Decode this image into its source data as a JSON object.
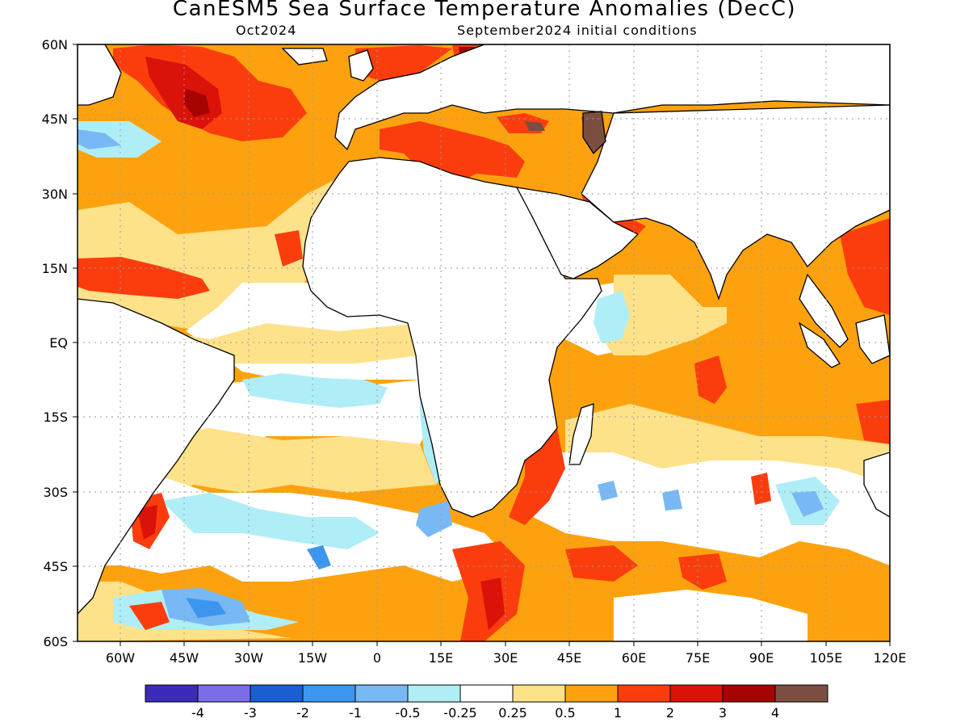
{
  "header": {
    "title": "CanESM5 Sea Surface Temperature Anomalies (DecC)",
    "target_month": "Oct2024",
    "init_conditions": "September2024 initial conditions"
  },
  "map": {
    "projection": "equirectangular",
    "lon_range": [
      -70,
      120
    ],
    "lat_range": [
      -60,
      60
    ],
    "grid": "dotted",
    "lat_ticks": [
      "60N",
      "45N",
      "30N",
      "15N",
      "EQ",
      "15S",
      "30S",
      "45S",
      "60S"
    ],
    "lon_ticks": [
      "60W",
      "45W",
      "30W",
      "15W",
      "0",
      "15E",
      "30E",
      "45E",
      "60E",
      "75E",
      "90E",
      "105E",
      "120E"
    ]
  },
  "colorbar": {
    "colors": [
      "#3a2cb8",
      "#7b6ce8",
      "#1a5fd1",
      "#3c96f0",
      "#78b9f5",
      "#b0eef7",
      "#ffffff",
      "#fde28a",
      "#fda20e",
      "#fb3d0e",
      "#db1209",
      "#a60303",
      "#7a4f42"
    ],
    "labels": [
      "-4",
      "-3",
      "-2",
      "-1",
      "-0.5",
      "-0.25",
      "0.25",
      "0.5",
      "1",
      "2",
      "3",
      "4"
    ]
  }
}
